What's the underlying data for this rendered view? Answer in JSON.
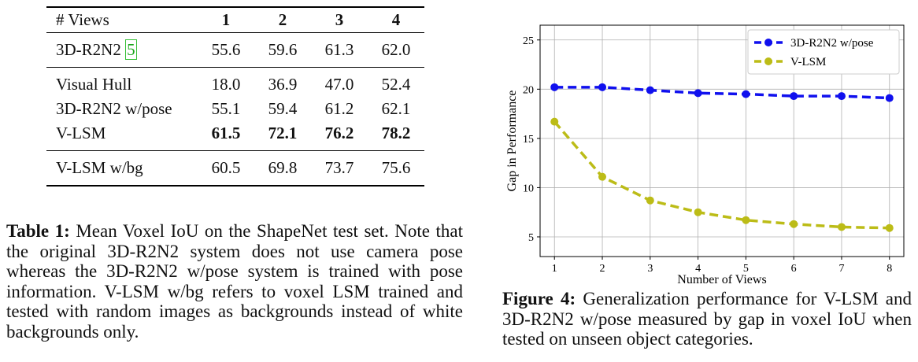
{
  "table": {
    "header": [
      "# Views",
      "1",
      "2",
      "3",
      "4"
    ],
    "rows": [
      {
        "name": "3D-R2N2",
        "cite": "5",
        "values": [
          "55.6",
          "59.6",
          "61.3",
          "62.0"
        ]
      },
      {
        "name": "Visual Hull",
        "values": [
          "18.0",
          "36.9",
          "47.0",
          "52.4"
        ]
      },
      {
        "name": "3D-R2N2 w/pose",
        "values": [
          "55.1",
          "59.4",
          "61.2",
          "62.1"
        ]
      },
      {
        "name": "V-LSM",
        "values": [
          "61.5",
          "72.1",
          "76.2",
          "78.2"
        ]
      },
      {
        "name": "V-LSM w/bg",
        "values": [
          "60.5",
          "69.8",
          "73.7",
          "75.6"
        ]
      }
    ]
  },
  "caption_table": {
    "label": "Table 1:",
    "text": "Mean Voxel IoU on the ShapeNet test set. Note that the original 3D-R2N2 system does not use camera pose whereas the 3D-R2N2 w/pose system is trained with pose information. V-LSM w/bg refers to voxel LSM trained and tested with random images as backgrounds instead of white backgrounds only."
  },
  "caption_figure": {
    "label": "Figure 4:",
    "text": "Generalization performance for V-LSM and 3D-R2N2 w/pose measured by gap in voxel IoU when tested on unseen object categories."
  },
  "chart_data": {
    "type": "line",
    "x": [
      1,
      2,
      3,
      4,
      5,
      6,
      7,
      8
    ],
    "series": [
      {
        "name": "3D-R2N2 w/pose",
        "color": "#1010ee",
        "values": [
          20.2,
          20.2,
          19.9,
          19.6,
          19.5,
          19.3,
          19.3,
          19.1
        ]
      },
      {
        "name": "V-LSM",
        "color": "#bcbc17",
        "values": [
          16.7,
          11.1,
          8.7,
          7.5,
          6.7,
          6.3,
          6.0,
          5.9
        ]
      }
    ],
    "xlabel": "Number of Views",
    "ylabel": "Gap in Performance",
    "xlim": [
      0.7,
      8.3
    ],
    "ylim": [
      3,
      26.5
    ],
    "xticks": [
      "1",
      "2",
      "3",
      "4",
      "5",
      "6",
      "7",
      "8"
    ],
    "yticks": [
      "5",
      "10",
      "15",
      "20",
      "25"
    ],
    "grid": true,
    "legend_position": "top-right",
    "line_style": "dashed",
    "marker": "circle"
  }
}
